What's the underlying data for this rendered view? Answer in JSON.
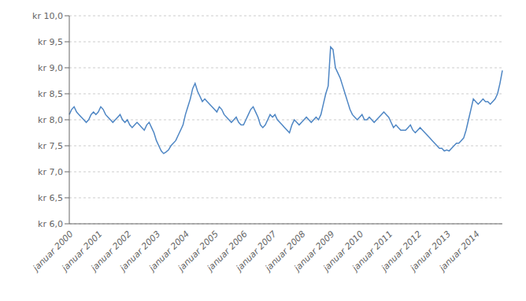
{
  "chart_data": {
    "type": "line",
    "categories": [
      "januar 2000",
      null,
      null,
      null,
      null,
      null,
      null,
      null,
      null,
      null,
      null,
      null,
      "januar 2001",
      null,
      null,
      null,
      null,
      null,
      null,
      null,
      null,
      null,
      null,
      null,
      "januar 2002",
      null,
      null,
      null,
      null,
      null,
      null,
      null,
      null,
      null,
      null,
      null,
      "januar 2003",
      null,
      null,
      null,
      null,
      null,
      null,
      null,
      null,
      null,
      null,
      null,
      "januar 2004",
      null,
      null,
      null,
      null,
      null,
      null,
      null,
      null,
      null,
      null,
      null,
      "januar 2005",
      null,
      null,
      null,
      null,
      null,
      null,
      null,
      null,
      null,
      null,
      null,
      "januar 2006",
      null,
      null,
      null,
      null,
      null,
      null,
      null,
      null,
      null,
      null,
      null,
      "januar 2007",
      null,
      null,
      null,
      null,
      null,
      null,
      null,
      null,
      null,
      null,
      null,
      "januar 2008",
      null,
      null,
      null,
      null,
      null,
      null,
      null,
      null,
      null,
      null,
      null,
      "januar 2009",
      null,
      null,
      null,
      null,
      null,
      null,
      null,
      null,
      null,
      null,
      null,
      "januar 2010",
      null,
      null,
      null,
      null,
      null,
      null,
      null,
      null,
      null,
      null,
      null,
      "januar 2011",
      null,
      null,
      null,
      null,
      null,
      null,
      null,
      null,
      null,
      null,
      null,
      "januar 2012",
      null,
      null,
      null,
      null,
      null,
      null,
      null,
      null,
      null,
      null,
      null,
      "januar 2013",
      null,
      null,
      null,
      null,
      null,
      null,
      null,
      null,
      null,
      null,
      null,
      "januar 2014",
      null,
      null,
      null,
      null,
      null,
      null,
      null,
      null,
      null,
      null,
      null
    ],
    "values": [
      8.1,
      8.2,
      8.25,
      8.15,
      8.1,
      8.05,
      8.0,
      7.95,
      8.0,
      8.1,
      8.15,
      8.1,
      8.15,
      8.25,
      8.2,
      8.1,
      8.05,
      8.0,
      7.95,
      8.0,
      8.05,
      8.1,
      8.0,
      7.95,
      8.0,
      7.9,
      7.85,
      7.9,
      7.95,
      7.9,
      7.85,
      7.8,
      7.9,
      7.95,
      7.85,
      7.75,
      7.6,
      7.5,
      7.4,
      7.35,
      7.38,
      7.42,
      7.5,
      7.55,
      7.6,
      7.7,
      7.8,
      7.9,
      8.1,
      8.25,
      8.4,
      8.6,
      8.7,
      8.55,
      8.45,
      8.35,
      8.4,
      8.35,
      8.3,
      8.25,
      8.2,
      8.15,
      8.25,
      8.2,
      8.1,
      8.05,
      8.0,
      7.95,
      8.0,
      8.05,
      7.95,
      7.9,
      7.9,
      8.0,
      8.1,
      8.2,
      8.25,
      8.15,
      8.05,
      7.9,
      7.85,
      7.9,
      8.0,
      8.1,
      8.05,
      8.1,
      8.0,
      7.95,
      7.9,
      7.85,
      7.8,
      7.75,
      7.9,
      8.0,
      7.95,
      7.9,
      7.95,
      8.0,
      8.05,
      8.0,
      7.95,
      8.0,
      8.05,
      8.0,
      8.1,
      8.3,
      8.5,
      8.65,
      9.4,
      9.35,
      9.0,
      8.9,
      8.8,
      8.65,
      8.5,
      8.35,
      8.2,
      8.1,
      8.05,
      8.0,
      8.05,
      8.1,
      8.0,
      8.0,
      8.05,
      8.0,
      7.95,
      8.0,
      8.05,
      8.1,
      8.15,
      8.1,
      8.05,
      7.95,
      7.85,
      7.9,
      7.85,
      7.8,
      7.8,
      7.8,
      7.85,
      7.9,
      7.8,
      7.75,
      7.8,
      7.85,
      7.8,
      7.75,
      7.7,
      7.65,
      7.6,
      7.55,
      7.5,
      7.45,
      7.45,
      7.4,
      7.42,
      7.4,
      7.45,
      7.5,
      7.55,
      7.55,
      7.6,
      7.65,
      7.8,
      8.0,
      8.2,
      8.4,
      8.35,
      8.3,
      8.35,
      8.4,
      8.35,
      8.35,
      8.3,
      8.35,
      8.4,
      8.5,
      8.7,
      8.95
    ],
    "color": "#4E86C4",
    "ylim": [
      6.0,
      10.0
    ],
    "yticks": [
      {
        "value": 6.0,
        "label": "kr 6,0"
      },
      {
        "value": 6.5,
        "label": "kr 6,5"
      },
      {
        "value": 7.0,
        "label": "kr 7,0"
      },
      {
        "value": 7.5,
        "label": "kr 7,5"
      },
      {
        "value": 8.0,
        "label": "kr 8,0"
      },
      {
        "value": 8.5,
        "label": "kr 8,5"
      },
      {
        "value": 9.0,
        "label": "kr 9,0"
      },
      {
        "value": 9.5,
        "label": "kr 9,5"
      },
      {
        "value": 10.0,
        "label": "kr 10,0"
      }
    ],
    "grid": true
  }
}
